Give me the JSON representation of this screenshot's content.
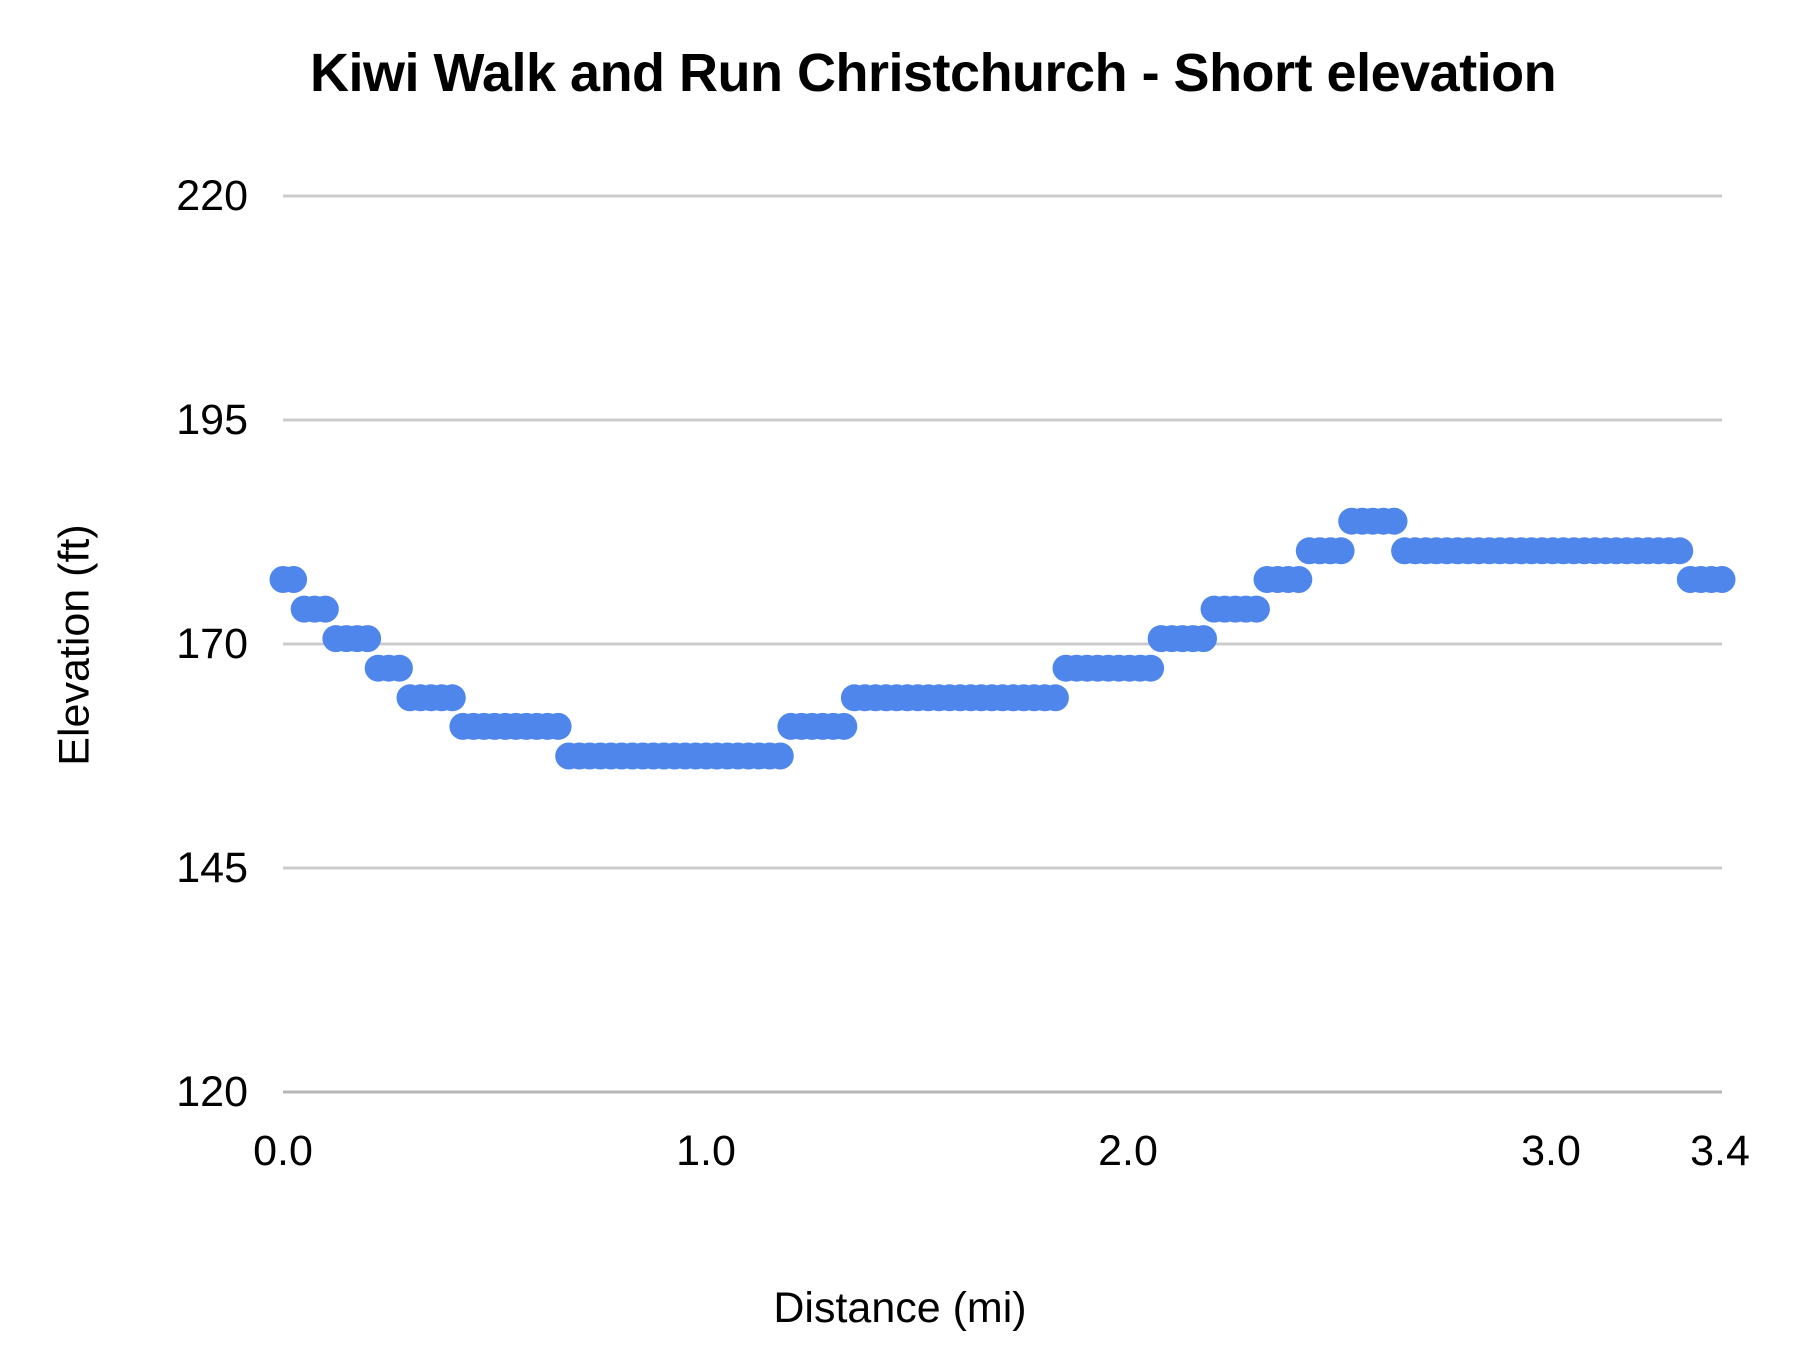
{
  "title": "Kiwi Walk and Run Christchurch - Short elevation",
  "chart_data": {
    "type": "scatter",
    "title": "Kiwi Walk and Run Christchurch - Short elevation",
    "xlabel": "Distance (mi)",
    "ylabel": "Elevation (ft)",
    "xlim": [
      0,
      3.4
    ],
    "ylim": [
      120,
      220
    ],
    "x_ticks": [
      "0.0",
      "1.0",
      "2.0",
      "3.0",
      "3.4"
    ],
    "x_tick_values": [
      0,
      1,
      2,
      3,
      3.4
    ],
    "y_ticks": [
      "220",
      "195",
      "170",
      "145",
      "120"
    ],
    "y_tick_values": [
      220,
      195,
      170,
      145,
      120
    ],
    "grid": "horizontal-only",
    "legend": "none",
    "point_color": "#4f86ec",
    "gridline_color": "#cccccc",
    "baseline_color": "#b7b7b7",
    "point_radius_px": 13.5,
    "point_interval_mi": 0.025,
    "series": [
      {
        "name": "Elevation",
        "note": "flat stepped segments [start_mi, end_mi, elevation_ft], points every 0.025 mi",
        "segments": [
          [
            0.0,
            0.025,
            177.2
          ],
          [
            0.05,
            0.1,
            173.9
          ],
          [
            0.125,
            0.2,
            170.6
          ],
          [
            0.225,
            0.275,
            167.3
          ],
          [
            0.3,
            0.4,
            164.0
          ],
          [
            0.425,
            0.65,
            160.8
          ],
          [
            0.675,
            1.175,
            157.5
          ],
          [
            1.2,
            1.325,
            160.8
          ],
          [
            1.35,
            1.825,
            164.0
          ],
          [
            1.85,
            2.05,
            167.3
          ],
          [
            2.075,
            2.175,
            170.6
          ],
          [
            2.2,
            2.3,
            173.9
          ],
          [
            2.325,
            2.4,
            177.2
          ],
          [
            2.425,
            2.5,
            180.4
          ],
          [
            2.525,
            2.625,
            183.7
          ],
          [
            2.65,
            3.3,
            180.4
          ],
          [
            3.325,
            3.4,
            177.2
          ]
        ]
      }
    ]
  }
}
